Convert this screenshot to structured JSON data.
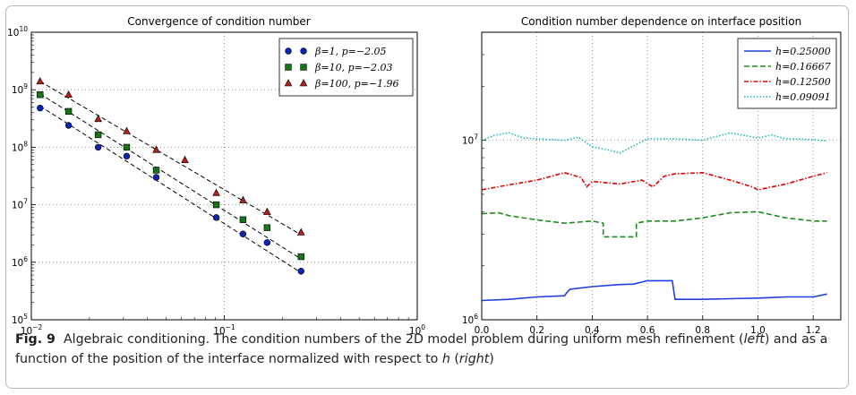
{
  "caption": {
    "label": "Fig. 9",
    "s1": "Algebraic conditioning. The condition numbers of the 2D model problem during uniform mesh refinement (",
    "s2": "left",
    "s3": ") and as a function of the position of the interface normalized with respect to ",
    "s4": "h",
    "s5": " (",
    "s6": "right",
    "s7": ")"
  },
  "chart_data": [
    {
      "type": "scatter",
      "title": "Convergence of condition number",
      "xlabel": "",
      "ylabel": "",
      "xscale": "log",
      "yscale": "log",
      "xlim": [
        0.01,
        1.0
      ],
      "ylim": [
        100000,
        10000000000
      ],
      "xticks": [
        {
          "v": 0.01,
          "b": "10",
          "e": "−2"
        },
        {
          "v": 0.1,
          "b": "10",
          "e": "−1"
        },
        {
          "v": 1.0,
          "b": "10",
          "e": "0"
        }
      ],
      "yticks": [
        {
          "v": 100000,
          "b": "10",
          "e": "5"
        },
        {
          "v": 1000000,
          "b": "10",
          "e": "6"
        },
        {
          "v": 10000000,
          "b": "10",
          "e": "7"
        },
        {
          "v": 100000000,
          "b": "10",
          "e": "8"
        },
        {
          "v": 1000000000,
          "b": "10",
          "e": "9"
        },
        {
          "v": 10000000000,
          "b": "10",
          "e": "10"
        }
      ],
      "grid": true,
      "legend_position": "top-right",
      "series": [
        {
          "name": "β=1, p=−2.05",
          "marker": "circle",
          "color": "#0b24b4",
          "x": [
            0.0111,
            0.0156,
            0.0222,
            0.0312,
            0.0444,
            0.0909,
            0.125,
            0.1667,
            0.25
          ],
          "y": [
            480000000,
            240000000,
            100000000,
            70000000,
            30000000,
            6000000,
            3100000,
            2200000,
            700000
          ],
          "fit": [
            520000000,
            660000
          ]
        },
        {
          "name": "β=10, p=−2.03",
          "marker": "square",
          "color": "#197319",
          "x": [
            0.0111,
            0.0156,
            0.0222,
            0.0312,
            0.0444,
            0.0909,
            0.125,
            0.1667,
            0.25
          ],
          "y": [
            820000000,
            420000000,
            165000000,
            100000000,
            40000000,
            10000000,
            5500000,
            4000000,
            1250000
          ],
          "fit": [
            850000000,
            1140000
          ]
        },
        {
          "name": "β=100, p=−1.96",
          "marker": "triangle",
          "color": "#b21f1f",
          "x": [
            0.0111,
            0.0156,
            0.0222,
            0.0312,
            0.0444,
            0.0625,
            0.0909,
            0.125,
            0.1667,
            0.25
          ],
          "y": [
            1400000000,
            820000000,
            310000000,
            190000000,
            90000000,
            60000000,
            16000000,
            12000000,
            7500000,
            3300000
          ],
          "fit": [
            1400000000,
            3000000
          ]
        }
      ]
    },
    {
      "type": "line",
      "title": "Condition number dependence on interface position",
      "xlabel": "",
      "ylabel": "",
      "xlim": [
        0.0,
        1.3
      ],
      "yscale": "log",
      "ylim": [
        1000000,
        40000000
      ],
      "xticks": [
        0.0,
        0.2,
        0.4,
        0.6,
        0.8,
        1.0,
        1.2
      ],
      "yticks": [
        {
          "v": 1000000,
          "b": "10",
          "e": "6"
        },
        {
          "v": 10000000,
          "b": "10",
          "e": "7"
        }
      ],
      "grid": true,
      "legend_position": "top-right",
      "series": [
        {
          "name": "h=0.25000",
          "style": "solid",
          "color": "#1f3fdc",
          "x": [
            0,
            0.1,
            0.2,
            0.3,
            0.3,
            0.31,
            0.32,
            0.4,
            0.5,
            0.55,
            0.6,
            0.69,
            0.7,
            0.8,
            0.9,
            1.0,
            1.05,
            1.1,
            1.2,
            1.25
          ],
          "y": [
            1280000,
            1300000,
            1340000,
            1360000,
            1360000,
            1430000,
            1480000,
            1530000,
            1570000,
            1580000,
            1650000,
            1650000,
            1300000,
            1300000,
            1310000,
            1320000,
            1330000,
            1340000,
            1340000,
            1390000
          ]
        },
        {
          "name": "h=0.16667",
          "style": "dashed",
          "color": "#1e8c1e",
          "x": [
            0,
            0.06,
            0.1,
            0.2,
            0.3,
            0.4,
            0.44,
            0.44,
            0.56,
            0.56,
            0.6,
            0.7,
            0.8,
            0.9,
            1.0,
            1.1,
            1.2,
            1.25
          ],
          "y": [
            3900000,
            3950000,
            3800000,
            3600000,
            3450000,
            3550000,
            3450000,
            2900000,
            2900000,
            3450000,
            3550000,
            3550000,
            3700000,
            3950000,
            4000000,
            3700000,
            3550000,
            3550000
          ]
        },
        {
          "name": "h=0.12500",
          "style": "dashdot",
          "color": "#e00000",
          "x": [
            0,
            0.1,
            0.2,
            0.3,
            0.36,
            0.38,
            0.4,
            0.5,
            0.58,
            0.62,
            0.66,
            0.7,
            0.8,
            0.9,
            0.98,
            1.0,
            1.1,
            1.2,
            1.25
          ],
          "y": [
            5300000,
            5650000,
            6000000,
            6600000,
            6200000,
            5500000,
            5900000,
            5700000,
            6000000,
            5500000,
            6300000,
            6500000,
            6600000,
            6000000,
            5500000,
            5300000,
            5700000,
            6300000,
            6600000
          ]
        },
        {
          "name": "h=0.09091",
          "style": "dotted",
          "color": "#19b9b9",
          "x": [
            0,
            0.05,
            0.1,
            0.15,
            0.2,
            0.3,
            0.35,
            0.4,
            0.45,
            0.5,
            0.55,
            0.6,
            0.7,
            0.8,
            0.9,
            1.0,
            1.05,
            1.1,
            1.2,
            1.25
          ],
          "y": [
            10000000,
            10700000,
            11000000,
            10300000,
            10200000,
            10000000,
            10400000,
            9200000,
            8900000,
            8500000,
            9300000,
            10200000,
            10200000,
            10000000,
            11000000,
            10300000,
            10700000,
            10200000,
            10100000,
            9900000
          ]
        }
      ]
    }
  ]
}
